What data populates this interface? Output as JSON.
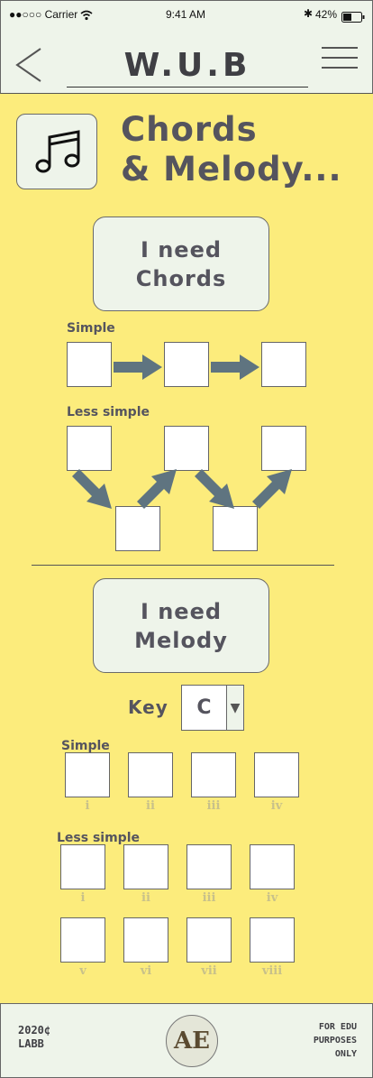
{
  "status_bar": {
    "carrier": "●●○○○ Carrier",
    "time": "9:41 AM",
    "battery": "42%"
  },
  "header": {
    "title": "W.U.B",
    "back_icon": "chevron-left-icon",
    "menu_icon": "hamburger-menu-icon"
  },
  "section": {
    "icon": "music-note-icon",
    "title_line1": "Chords",
    "title_line2": "& Melody..."
  },
  "chords": {
    "button_line1": "I need",
    "button_line2": "Chords",
    "simple_label": "Simple",
    "less_simple_label": "Less simple"
  },
  "melody": {
    "button_line1": "I need",
    "button_line2": "Melody",
    "key_label": "Key",
    "key_value": "C",
    "simple_label": "Simple",
    "simple_numerals": [
      "i",
      "ii",
      "iii",
      "iv"
    ],
    "less_simple_label": "Less simple",
    "less_numerals_row1": [
      "i",
      "ii",
      "iii",
      "iv"
    ],
    "less_numerals_row2": [
      "v",
      "vi",
      "vii",
      "viii"
    ]
  },
  "footer": {
    "left_line1": "2020¢",
    "left_line2": "LABB",
    "logo_text": "AE",
    "right_line1": "FOR EDU",
    "right_line2": "PURPOSES",
    "right_line3": "ONLY"
  },
  "colors": {
    "background": "#fcec7c",
    "panel": "#eef4ea",
    "arrow": "#5f7480",
    "text": "#55545e"
  }
}
